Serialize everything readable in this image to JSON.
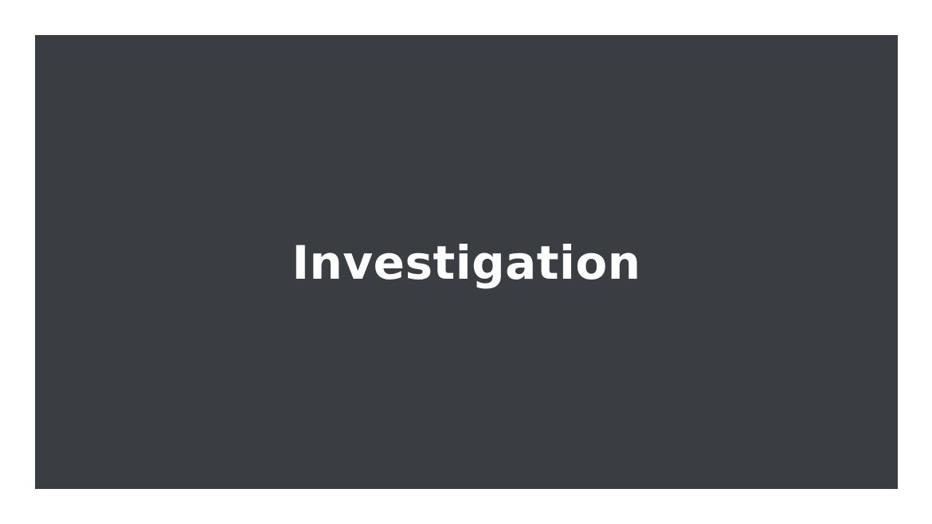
{
  "slide": {
    "title": "Investigation"
  },
  "colors": {
    "page_background": "#ffffff",
    "panel_background": "#3a3e42",
    "title_text": "#ffffff"
  }
}
